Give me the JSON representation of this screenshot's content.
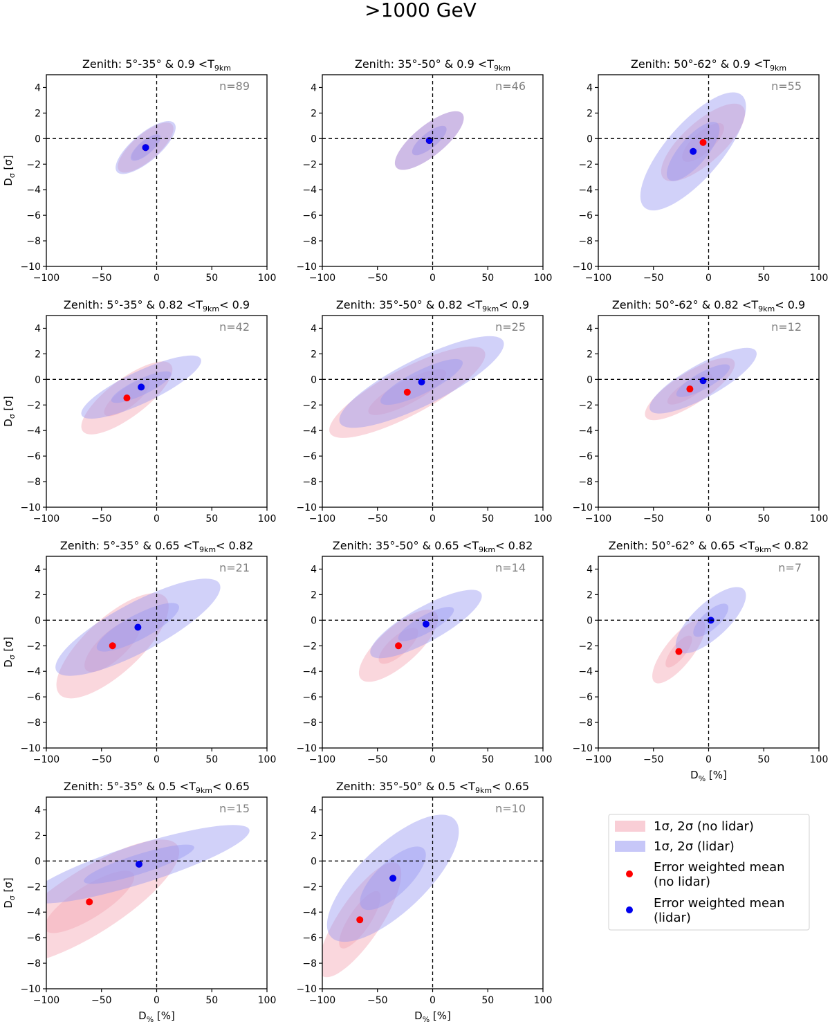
{
  "suptitle": ">1000 GeV",
  "xlabel": "D% [%]",
  "ylabel": "Dσ [σ]",
  "colors": {
    "no_lidar": "#f4a6b4",
    "lidar": "#9999f2",
    "mean_no_lidar": "#ff0000",
    "mean_lidar": "#0000ee"
  },
  "legend": {
    "items": [
      {
        "label": "1σ, 2σ (no lidar)",
        "kind": "patch-red"
      },
      {
        "label": "1σ, 2σ (lidar)",
        "kind": "patch-blue"
      },
      {
        "label": "Error weighted mean (no lidar)",
        "kind": "dot-red"
      },
      {
        "label": "Error weighted mean (lidar)",
        "kind": "dot-blue"
      }
    ]
  },
  "chart_data": [
    {
      "type": "scatter",
      "title": "Zenith: 5°-35° & 0.9 <T9km",
      "n": "n=89",
      "xlim": [
        -100,
        100
      ],
      "ylim": [
        -10,
        5
      ],
      "xticks": [
        -100,
        -50,
        0,
        50,
        100
      ],
      "yticks": [
        4,
        2,
        0,
        -2,
        -4,
        -6,
        -8,
        -10
      ],
      "no_lidar": {
        "mean": [
          -10,
          -0.7
        ],
        "sx": 12,
        "sy": 0.9
      },
      "lidar": {
        "mean": [
          -10,
          -0.7
        ],
        "sx": 13,
        "sy": 0.95
      }
    },
    {
      "type": "scatter",
      "title": "Zenith: 35°-50° & 0.9 <T9km",
      "n": "n=46",
      "xlim": [
        -100,
        100
      ],
      "ylim": [
        -10,
        5
      ],
      "xticks": [
        -100,
        -50,
        0,
        50,
        100
      ],
      "yticks": [
        4,
        2,
        0,
        -2,
        -4,
        -6,
        -8,
        -10
      ],
      "no_lidar": {
        "mean": [
          -3,
          -0.15
        ],
        "sx": 15,
        "sy": 1.05
      },
      "lidar": {
        "mean": [
          -3,
          -0.15
        ],
        "sx": 15,
        "sy": 1.05
      }
    },
    {
      "type": "scatter",
      "title": "Zenith: 50°-62° & 0.9 <T9km",
      "n": "n=55",
      "xlim": [
        -100,
        100
      ],
      "ylim": [
        -10,
        5
      ],
      "xticks": [
        -100,
        -50,
        0,
        50,
        100
      ],
      "yticks": [
        4,
        2,
        0,
        -2,
        -4,
        -6,
        -8,
        -10
      ],
      "no_lidar": {
        "mean": [
          -5,
          -0.3
        ],
        "sx": 18,
        "sy": 1.4
      },
      "lidar": {
        "mean": [
          -14,
          -1.0
        ],
        "sx": 22,
        "sy": 2.2
      }
    },
    {
      "type": "scatter",
      "title": "Zenith: 5°-35° & 0.82 <T9km< 0.9",
      "n": "n=42",
      "xlim": [
        -100,
        100
      ],
      "ylim": [
        -10,
        5
      ],
      "xticks": [
        -100,
        -50,
        0,
        50,
        100
      ],
      "yticks": [
        4,
        2,
        0,
        -2,
        -4,
        -6,
        -8,
        -10
      ],
      "no_lidar": {
        "mean": [
          -27,
          -1.45
        ],
        "sx": 20,
        "sy": 1.3
      },
      "lidar": {
        "mean": [
          -14,
          -0.6
        ],
        "sx": 27,
        "sy": 1.1
      }
    },
    {
      "type": "scatter",
      "title": "Zenith: 35°-50° & 0.82 <T9km< 0.9",
      "n": "n=25",
      "xlim": [
        -100,
        100
      ],
      "ylim": [
        -10,
        5
      ],
      "xticks": [
        -100,
        -50,
        0,
        50,
        100
      ],
      "yticks": [
        4,
        2,
        0,
        -2,
        -4,
        -6,
        -8,
        -10
      ],
      "no_lidar": {
        "mean": [
          -23,
          -1.0
        ],
        "sx": 35,
        "sy": 1.6
      },
      "lidar": {
        "mean": [
          -10,
          -0.2
        ],
        "sx": 37,
        "sy": 1.6
      }
    },
    {
      "type": "scatter",
      "title": "Zenith: 50°-62° & 0.82 <T9km< 0.9",
      "n": "n=12",
      "xlim": [
        -100,
        100
      ],
      "ylim": [
        -10,
        5
      ],
      "xticks": [
        -100,
        -50,
        0,
        50,
        100
      ],
      "yticks": [
        4,
        2,
        0,
        -2,
        -4,
        -6,
        -8,
        -10
      ],
      "no_lidar": {
        "mean": [
          -17,
          -0.75
        ],
        "sx": 20,
        "sy": 1.1
      },
      "lidar": {
        "mean": [
          -5,
          -0.1
        ],
        "sx": 24,
        "sy": 1.15
      }
    },
    {
      "type": "scatter",
      "title": "Zenith: 5°-35° & 0.65 <T9km< 0.82",
      "n": "n=21",
      "xlim": [
        -100,
        100
      ],
      "ylim": [
        -10,
        5
      ],
      "xticks": [
        -100,
        -50,
        0,
        50,
        100
      ],
      "yticks": [
        4,
        2,
        0,
        -2,
        -4,
        -6,
        -8,
        -10
      ],
      "no_lidar": {
        "mean": [
          -40,
          -2.0
        ],
        "sx": 24,
        "sy": 1.9
      },
      "lidar": {
        "mean": [
          -17,
          -0.55
        ],
        "sx": 37,
        "sy": 1.7
      }
    },
    {
      "type": "scatter",
      "title": "Zenith: 35°-50° & 0.65 <T9km< 0.82",
      "n": "n=14",
      "xlim": [
        -100,
        100
      ],
      "ylim": [
        -10,
        5
      ],
      "xticks": [
        -100,
        -50,
        0,
        50,
        100
      ],
      "yticks": [
        4,
        2,
        0,
        -2,
        -4,
        -6,
        -8,
        -10
      ],
      "no_lidar": {
        "mean": [
          -31,
          -2.0
        ],
        "sx": 17,
        "sy": 1.3
      },
      "lidar": {
        "mean": [
          -6,
          -0.3
        ],
        "sx": 25,
        "sy": 1.2
      }
    },
    {
      "type": "scatter",
      "title": "Zenith: 50°-62° & 0.65 <T9km< 0.82",
      "n": "n=7",
      "xlim": [
        -100,
        100
      ],
      "ylim": [
        -10,
        5
      ],
      "xticks": [
        -100,
        -50,
        0,
        50,
        100
      ],
      "yticks": [
        4,
        2,
        0,
        -2,
        -4,
        -6,
        -8,
        -10
      ],
      "no_lidar": {
        "mean": [
          -27,
          -2.45
        ],
        "sx": 11,
        "sy": 1.2
      },
      "lidar": {
        "mean": [
          2,
          0.0
        ],
        "sx": 15,
        "sy": 1.2
      },
      "xlabel": true
    },
    {
      "type": "scatter",
      "title": "Zenith: 5°-35° & 0.5 <T9km< 0.65",
      "n": "n=15",
      "xlim": [
        -100,
        100
      ],
      "ylim": [
        -10,
        5
      ],
      "xticks": [
        -100,
        -50,
        0,
        50,
        100
      ],
      "yticks": [
        4,
        2,
        0,
        -2,
        -4,
        -6,
        -8,
        -10
      ],
      "no_lidar": {
        "mean": [
          -61,
          -3.2
        ],
        "sx": 40,
        "sy": 2.2
      },
      "lidar": {
        "mean": [
          -16,
          -0.25
        ],
        "sx": 50,
        "sy": 1.35
      },
      "xlabel": true
    },
    {
      "type": "scatter",
      "title": "Zenith: 35°-50° & 0.5 <T9km< 0.65",
      "n": "n=10",
      "xlim": [
        -100,
        100
      ],
      "ylim": [
        -10,
        5
      ],
      "xticks": [
        -100,
        -50,
        0,
        50,
        100
      ],
      "yticks": [
        4,
        2,
        0,
        -2,
        -4,
        -6,
        -8,
        -10
      ],
      "no_lidar": {
        "mean": [
          -66,
          -4.6
        ],
        "sx": 17,
        "sy": 2.2
      },
      "lidar": {
        "mean": [
          -36,
          -1.35
        ],
        "sx": 28,
        "sy": 2.3
      },
      "xlabel": true
    }
  ]
}
